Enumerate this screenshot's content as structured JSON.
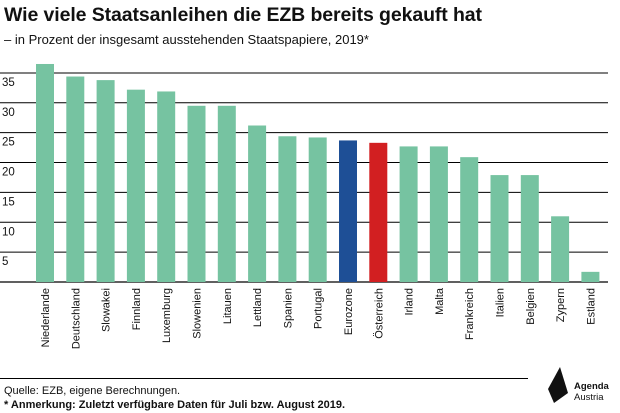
{
  "header": {
    "title": "Wie viele Staatsanleihen die EZB bereits gekauft hat",
    "subtitle": "– in Prozent der insgesamt ausstehenden Staatspapiere, 2019*"
  },
  "footer": {
    "source": "Quelle: EZB, eigene Berechnungen.",
    "note": "* Anmerkung: Zuletzt verfügbare Daten für Juli bzw. August 2019.",
    "brand_line1": "Agenda",
    "brand_line2": "Austria"
  },
  "colors": {
    "default_bar": "#76c3a1",
    "eurozone_bar": "#1e4f96",
    "austria_bar": "#d21f21",
    "gridline": "#000000"
  },
  "chart_data": {
    "type": "bar",
    "title": "Wie viele Staatsanleihen die EZB bereits gekauft hat",
    "subtitle": "– in Prozent der insgesamt ausstehenden Staatspapiere, 2019*",
    "categories": [
      "Niederlande",
      "Deutschland",
      "Slowakei",
      "Finnland",
      "Luxemburg",
      "Slowenien",
      "Litauen",
      "Lettland",
      "Spanien",
      "Portugal",
      "Eurozone",
      "Österreich",
      "Irland",
      "Malta",
      "Frankreich",
      "Italien",
      "Belgien",
      "Zypern",
      "Estland"
    ],
    "values": [
      36.5,
      34.4,
      33.8,
      32.2,
      31.9,
      29.5,
      29.5,
      26.2,
      24.4,
      24.2,
      23.7,
      23.3,
      22.7,
      22.7,
      20.9,
      17.9,
      17.9,
      11.0,
      1.7
    ],
    "highlight": {
      "Eurozone": "#1e4f96",
      "Österreich": "#d21f21"
    },
    "yticks": [
      5,
      10,
      15,
      20,
      25,
      30,
      35
    ],
    "ylim": [
      0,
      37
    ],
    "xlabel": "",
    "ylabel": "",
    "grid": true
  }
}
